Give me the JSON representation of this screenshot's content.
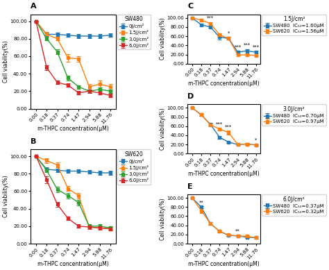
{
  "chart_data": [
    {
      "type": "line",
      "title": "A",
      "legend_title": "SW480",
      "x_label": "m-THPC concentration(μM)",
      "y_label": "Cell viability(%)",
      "categories": [
        "0.00",
        "0.18",
        "0.37",
        "0.74",
        "1.47",
        "2.94",
        "5.88",
        "11.76"
      ],
      "ylim": [
        0,
        108
      ],
      "yticks": [
        {
          "value": 0,
          "label": "0.00"
        },
        {
          "value": 20,
          "label": "20.00"
        },
        {
          "value": 40,
          "label": "40.00"
        },
        {
          "value": 60,
          "label": "60.00"
        },
        {
          "value": 80,
          "label": "80.00"
        },
        {
          "value": 100,
          "label": "100.00"
        }
      ],
      "legend": "right",
      "grid": false,
      "marker": "square",
      "series": [
        {
          "name": "0J/cm²",
          "values": [
            100,
            85,
            85,
            84,
            83,
            83,
            83,
            84
          ],
          "yerr": [
            0,
            2,
            2,
            2,
            2,
            2,
            2,
            2
          ]
        },
        {
          "name": "1.5J/cm²",
          "values": [
            100,
            85,
            80,
            58,
            57,
            25,
            28,
            25
          ],
          "yerr": [
            0,
            3,
            2,
            4,
            3,
            3,
            4,
            3
          ]
        },
        {
          "name": "3.0J/cm²",
          "values": [
            100,
            80,
            65,
            35,
            25,
            20,
            22,
            20
          ],
          "yerr": [
            0,
            2,
            3,
            3,
            2,
            2,
            2,
            2
          ]
        },
        {
          "name": "6.0J/cm²",
          "values": [
            100,
            47,
            30,
            27,
            18,
            20,
            18,
            15
          ],
          "yerr": [
            0,
            3,
            2,
            2,
            2,
            2,
            2,
            2
          ]
        }
      ]
    },
    {
      "type": "line",
      "title": "B",
      "legend_title": "SW620",
      "x_label": "m-THPC concentration(μM)",
      "y_label": "Cell viability(%)",
      "categories": [
        "0.00",
        "0.18",
        "0.37",
        "0.74",
        "1.47",
        "2.94",
        "5.88",
        "11.76"
      ],
      "ylim": [
        0,
        108
      ],
      "yticks": [
        {
          "value": 0,
          "label": "0.00"
        },
        {
          "value": 20,
          "label": "20.00"
        },
        {
          "value": 40,
          "label": "40.00"
        },
        {
          "value": 60,
          "label": "60.00"
        },
        {
          "value": 80,
          "label": "80.00"
        },
        {
          "value": 100,
          "label": "100.00"
        }
      ],
      "legend": "right",
      "grid": false,
      "marker": "square",
      "series": [
        {
          "name": "0J/cm²",
          "values": [
            100,
            85,
            84,
            83,
            83,
            82,
            81,
            81
          ],
          "yerr": [
            0,
            2,
            2,
            2,
            2,
            2,
            2,
            2
          ]
        },
        {
          "name": "1.5J/cm²",
          "values": [
            100,
            95,
            90,
            63,
            55,
            19,
            18,
            17
          ],
          "yerr": [
            0,
            3,
            3,
            3,
            3,
            2,
            2,
            2
          ]
        },
        {
          "name": "3.0J/cm²",
          "values": [
            100,
            84,
            62,
            55,
            47,
            20,
            20,
            18
          ],
          "yerr": [
            0,
            2,
            3,
            3,
            3,
            2,
            2,
            2
          ]
        },
        {
          "name": "6.0J/cm²",
          "values": [
            100,
            73,
            45,
            29,
            20,
            19,
            18,
            17
          ],
          "yerr": [
            0,
            4,
            3,
            2,
            2,
            2,
            2,
            2
          ]
        }
      ]
    },
    {
      "type": "line",
      "title": "C",
      "legend_title": "1.5J/cm²",
      "x_label": "m-THPC concentration(μM)",
      "y_label": "Cell viability(%)",
      "categories": [
        "0.00",
        "0.18",
        "0.37",
        "0.74",
        "1.47",
        "2.94",
        "5.88",
        "11.76"
      ],
      "ylim": [
        0,
        108
      ],
      "yticks": [
        {
          "value": 0,
          "label": "0.00"
        },
        {
          "value": 20,
          "label": "20.00"
        },
        {
          "value": 40,
          "label": "40.00"
        },
        {
          "value": 60,
          "label": "60.00"
        },
        {
          "value": 80,
          "label": "80.00"
        },
        {
          "value": 100,
          "label": "100.00"
        }
      ],
      "legend": "right",
      "grid": false,
      "marker": "square",
      "series": [
        {
          "name": "SW480  IC₅₀=1.60μM",
          "values": [
            100,
            85,
            80,
            58,
            55,
            25,
            28,
            25
          ],
          "yerr": [
            0,
            3,
            2,
            5,
            3,
            3,
            4,
            3
          ]
        },
        {
          "name": "SW620  IC₅₀=1.56μM",
          "values": [
            100,
            95,
            88,
            63,
            55,
            19,
            19,
            18
          ],
          "yerr": [
            0,
            3,
            3,
            3,
            3,
            2,
            2,
            2
          ]
        }
      ],
      "annotations": [
        {
          "category": "0.37",
          "text": "***"
        },
        {
          "category": "1.47",
          "text": "*"
        },
        {
          "category": "2.94",
          "text": "***"
        },
        {
          "category": "5.88",
          "text": "***"
        },
        {
          "category": "11.76",
          "text": "***"
        }
      ]
    },
    {
      "type": "line",
      "title": "D",
      "legend_title": "3.0J/cm²",
      "x_label": "m-THPC concentration(μM)",
      "y_label": "Cell viability(%)",
      "categories": [
        "0.00",
        "0.18",
        "0.37",
        "0.74",
        "1.47",
        "2.94",
        "5.88",
        "11.76"
      ],
      "ylim": [
        0,
        108
      ],
      "yticks": [
        {
          "value": 0,
          "label": "0.00"
        },
        {
          "value": 20,
          "label": "20.00"
        },
        {
          "value": 40,
          "label": "40.00"
        },
        {
          "value": 60,
          "label": "60.00"
        },
        {
          "value": 80,
          "label": "80.00"
        },
        {
          "value": 100,
          "label": "100.00"
        }
      ],
      "legend": "right",
      "grid": false,
      "marker": "square",
      "series": [
        {
          "name": "SW480  IC₅₀=0.70μM",
          "values": [
            100,
            85,
            64,
            36,
            25,
            20,
            21,
            19
          ],
          "yerr": [
            0,
            2,
            3,
            3,
            2,
            2,
            2,
            2
          ]
        },
        {
          "name": "SW620  IC₅₀=0.97μM",
          "values": [
            100,
            85,
            63,
            54,
            46,
            20,
            21,
            19
          ],
          "yerr": [
            0,
            2,
            3,
            3,
            4,
            2,
            2,
            2
          ]
        }
      ],
      "annotations": [
        {
          "category": "0.74",
          "text": "***"
        },
        {
          "category": "1.47",
          "text": "***"
        },
        {
          "category": "11.76",
          "text": "*"
        }
      ]
    },
    {
      "type": "line",
      "title": "E",
      "legend_title": "6.0J/cm²",
      "x_label": "m-THPC concentration(μM)",
      "y_label": "Cell viability(%)",
      "categories": [
        "0.00",
        "0.18",
        "0.37",
        "0.74",
        "1.47",
        "2.94",
        "5.88",
        "11.76"
      ],
      "ylim": [
        0,
        108
      ],
      "yticks": [
        {
          "value": 0,
          "label": "0.00"
        },
        {
          "value": 20,
          "label": "20.00"
        },
        {
          "value": 40,
          "label": "40.00"
        },
        {
          "value": 60,
          "label": "60.00"
        },
        {
          "value": 80,
          "label": "80.00"
        },
        {
          "value": 100,
          "label": "100.00"
        }
      ],
      "legend": "right",
      "grid": false,
      "marker": "square",
      "series": [
        {
          "name": "SW480  IC₅₀=0.37μM",
          "values": [
            100,
            80,
            44,
            27,
            18,
            17,
            14,
            13
          ],
          "yerr": [
            0,
            2,
            3,
            2,
            2,
            2,
            2,
            2
          ]
        },
        {
          "name": "SW620  IC₅₀=0.32μM",
          "values": [
            100,
            72,
            44,
            27,
            19,
            17,
            16,
            13
          ],
          "yerr": [
            0,
            5,
            3,
            2,
            2,
            2,
            2,
            2
          ]
        }
      ],
      "annotations": [
        {
          "category": "0.18",
          "text": "**"
        },
        {
          "category": "2.94",
          "text": "**"
        }
      ]
    }
  ]
}
